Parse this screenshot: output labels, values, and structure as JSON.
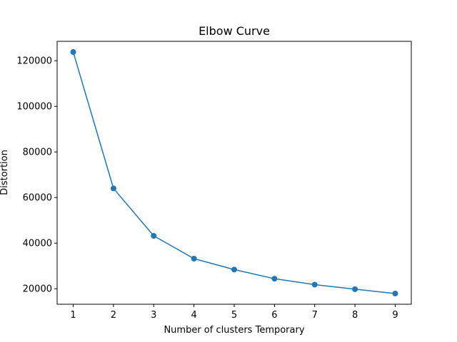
{
  "chart_data": {
    "type": "line",
    "title": "Elbow Curve",
    "xlabel": "Number of clusters Temporary",
    "ylabel": "Distortion",
    "x": [
      1,
      2,
      3,
      4,
      5,
      6,
      7,
      8,
      9
    ],
    "series": [
      {
        "values": [
          123800,
          64000,
          43200,
          33200,
          28400,
          24400,
          21800,
          19800,
          17900
        ],
        "color": "#1f77b4",
        "marker": "circle"
      }
    ],
    "xlim": [
      0.6,
      9.4
    ],
    "ylim": [
      13200,
      128500
    ],
    "xticks": [
      1,
      2,
      3,
      4,
      5,
      6,
      7,
      8,
      9
    ],
    "yticks": [
      20000,
      40000,
      60000,
      80000,
      100000,
      120000
    ],
    "grid": false,
    "legend": "none"
  }
}
